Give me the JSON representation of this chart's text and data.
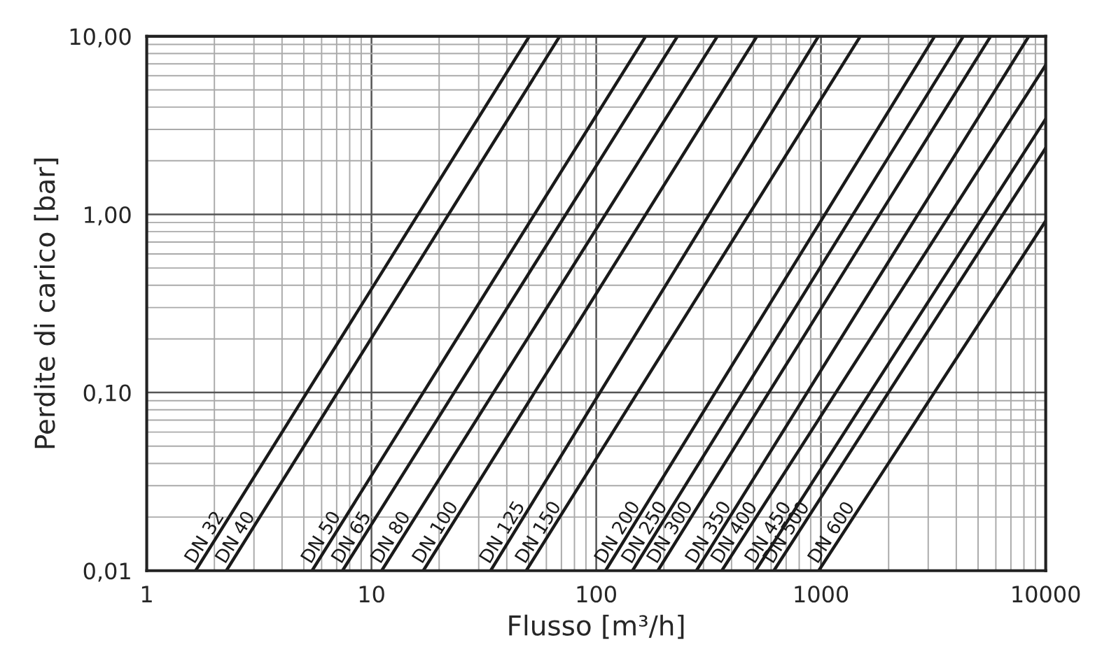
{
  "chart_data": {
    "type": "line",
    "xlabel": "Flusso [m³/h]",
    "ylabel": "Perdite di carico [bar]",
    "log": "xy",
    "grid": true,
    "marker": "none",
    "line_style": "solid",
    "xlim": [
      1,
      10000
    ],
    "ylim": [
      0.01,
      10
    ],
    "xticks": [
      1,
      10,
      100,
      1000,
      10000
    ],
    "yticks": [
      {
        "value": 0.01,
        "label": "0,01"
      },
      {
        "value": 0.1,
        "label": "0,10"
      },
      {
        "value": 1,
        "label": "1,00"
      },
      {
        "value": 10,
        "label": "10,00"
      }
    ],
    "series": [
      {
        "name": "DN 32",
        "color": "#1a1a1a",
        "x": [
          1.65,
          50.4
        ],
        "values": [
          0.01,
          10
        ]
      },
      {
        "name": "DN 40",
        "color": "#1a1a1a",
        "x": [
          2.26,
          68.8
        ],
        "values": [
          0.01,
          10
        ]
      },
      {
        "name": "DN 50",
        "color": "#1a1a1a",
        "x": [
          5.44,
          166
        ],
        "values": [
          0.01,
          10
        ]
      },
      {
        "name": "DN 65",
        "color": "#1a1a1a",
        "x": [
          7.43,
          230
        ],
        "values": [
          0.01,
          10
        ]
      },
      {
        "name": "DN 80",
        "color": "#1a1a1a",
        "x": [
          11.1,
          346
        ],
        "values": [
          0.01,
          10
        ]
      },
      {
        "name": "DN 100",
        "color": "#1a1a1a",
        "x": [
          17,
          519
        ],
        "values": [
          0.01,
          10
        ]
      },
      {
        "name": "DN 125",
        "color": "#1a1a1a",
        "x": [
          33.9,
          975
        ],
        "values": [
          0.01,
          10
        ]
      },
      {
        "name": "DN 150",
        "color": "#1a1a1a",
        "x": [
          48.8,
          1497
        ],
        "values": [
          0.01,
          10
        ]
      },
      {
        "name": "DN 200",
        "color": "#1a1a1a",
        "x": [
          110,
          3206
        ],
        "values": [
          0.01,
          10
        ]
      },
      {
        "name": "DN 250",
        "color": "#1a1a1a",
        "x": [
          145,
          4300
        ],
        "values": [
          0.01,
          10
        ]
      },
      {
        "name": "DN 300",
        "color": "#1a1a1a",
        "x": [
          188,
          5690
        ],
        "values": [
          0.01,
          10
        ]
      },
      {
        "name": "DN 350",
        "color": "#1a1a1a",
        "x": [
          279,
          8410
        ],
        "values": [
          0.01,
          10
        ]
      },
      {
        "name": "DN 400",
        "color": "#1a1a1a",
        "x": [
          362,
          10000
        ],
        "values": [
          0.01,
          6.9
        ]
      },
      {
        "name": "DN 450",
        "color": "#1a1a1a",
        "x": [
          512,
          10000
        ],
        "values": [
          0.01,
          3.44
        ]
      },
      {
        "name": "DN 500",
        "color": "#1a1a1a",
        "x": [
          617,
          10000
        ],
        "values": [
          0.01,
          2.36
        ]
      },
      {
        "name": "DN 600",
        "color": "#1a1a1a",
        "x": [
          977,
          10000
        ],
        "values": [
          0.01,
          0.92
        ]
      }
    ]
  }
}
